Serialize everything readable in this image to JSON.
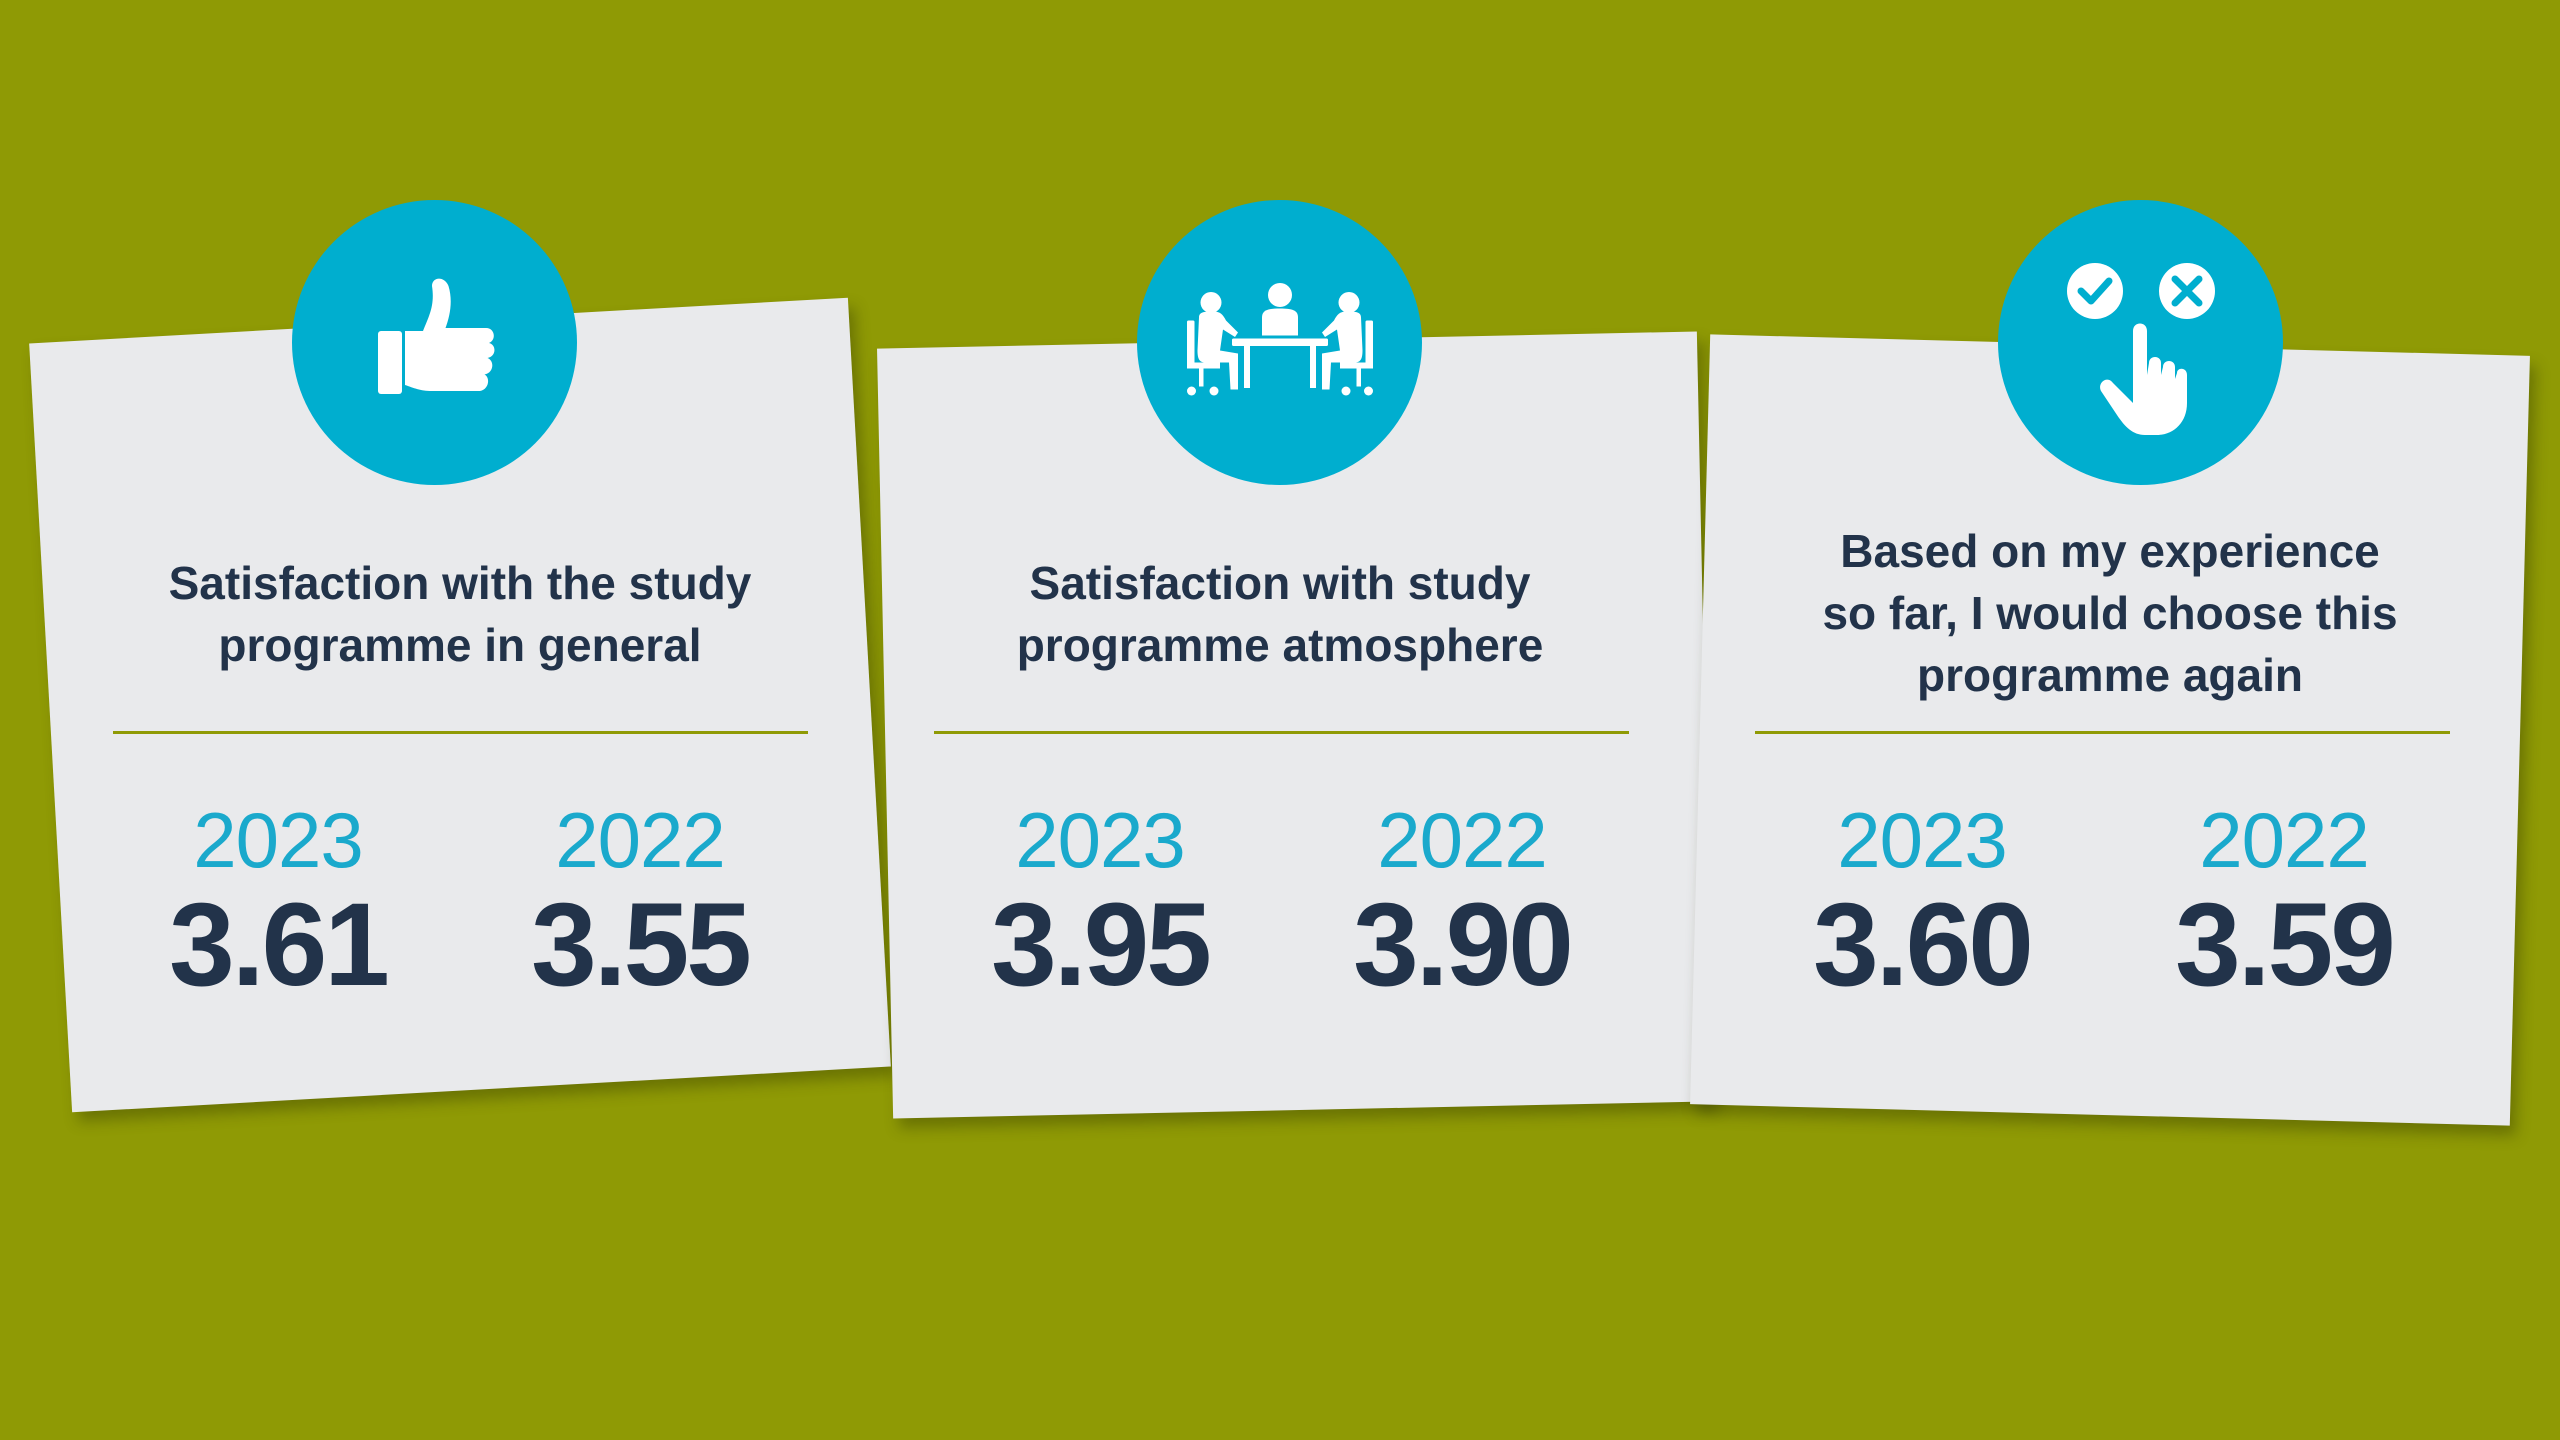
{
  "colors": {
    "background": "#8f9a05",
    "card": "#e9eaec",
    "accent": "#00aecf",
    "text_dark": "#22334a",
    "year": "#1aa9cc"
  },
  "cards": [
    {
      "icon": "thumbs-up-icon",
      "title_lines": [
        "Satisfaction with the study",
        "programme in general"
      ],
      "stats": [
        {
          "year": "2023",
          "value": "3.61"
        },
        {
          "year": "2022",
          "value": "3.55"
        }
      ]
    },
    {
      "icon": "meeting-icon",
      "title_lines": [
        "Satisfaction with study",
        "programme atmosphere"
      ],
      "stats": [
        {
          "year": "2023",
          "value": "3.95"
        },
        {
          "year": "2022",
          "value": "3.90"
        }
      ]
    },
    {
      "icon": "choice-icon",
      "title_lines": [
        "Based on my experience",
        "so far, I would choose this",
        "programme again"
      ],
      "stats": [
        {
          "year": "2023",
          "value": "3.60"
        },
        {
          "year": "2022",
          "value": "3.59"
        }
      ]
    }
  ]
}
